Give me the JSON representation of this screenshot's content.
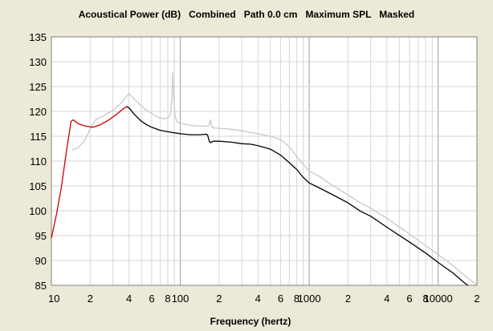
{
  "chart_data": {
    "type": "line",
    "title": "Acoustical Power (dB)   Combined   Path 0.0 cm   Maximum SPL   Masked",
    "xlabel": "Frequency (hertz)",
    "ylabel": "",
    "x_scale": "log",
    "xlim": [
      10,
      20000
    ],
    "ylim": [
      85,
      135
    ],
    "grid": true,
    "y_ticks": [
      85,
      90,
      95,
      100,
      105,
      110,
      115,
      120,
      125,
      130,
      135
    ],
    "x_tick_labels": [
      {
        "x": 10,
        "label": "10"
      },
      {
        "x": 20,
        "label": "2"
      },
      {
        "x": 40,
        "label": "4"
      },
      {
        "x": 60,
        "label": "6"
      },
      {
        "x": 80,
        "label": "8"
      },
      {
        "x": 100,
        "label": "100"
      },
      {
        "x": 200,
        "label": "2"
      },
      {
        "x": 400,
        "label": "4"
      },
      {
        "x": 600,
        "label": "6"
      },
      {
        "x": 800,
        "label": "8"
      },
      {
        "x": 1000,
        "label": "1000"
      },
      {
        "x": 2000,
        "label": "2"
      },
      {
        "x": 4000,
        "label": "4"
      },
      {
        "x": 6000,
        "label": "6"
      },
      {
        "x": 8000,
        "label": "8"
      },
      {
        "x": 10000,
        "label": "10000"
      },
      {
        "x": 20000,
        "label": "2"
      }
    ],
    "series": [
      {
        "color": "#c8c8c8",
        "points": [
          [
            14.5,
            112.3
          ],
          [
            16,
            112.6
          ],
          [
            18,
            114.0
          ],
          [
            20,
            116.5
          ],
          [
            22,
            118.3
          ],
          [
            25,
            119.0
          ],
          [
            30,
            120.2
          ],
          [
            35,
            121.8
          ],
          [
            40,
            123.6
          ],
          [
            45,
            122.2
          ],
          [
            50,
            121.0
          ],
          [
            55,
            120.2
          ],
          [
            60,
            119.6
          ],
          [
            65,
            119.0
          ],
          [
            70,
            118.7
          ],
          [
            75,
            118.5
          ],
          [
            80,
            118.7
          ],
          [
            84,
            119.5
          ],
          [
            86,
            122.5
          ],
          [
            87.5,
            127.8
          ],
          [
            89,
            123.0
          ],
          [
            91,
            119.0
          ],
          [
            95,
            117.8
          ],
          [
            100,
            117.6
          ],
          [
            120,
            117.2
          ],
          [
            150,
            117.0
          ],
          [
            165,
            117.1
          ],
          [
            168,
            117.4
          ],
          [
            172,
            118.3
          ],
          [
            175,
            117.0
          ],
          [
            180,
            116.7
          ],
          [
            200,
            116.6
          ],
          [
            250,
            116.4
          ],
          [
            300,
            116.1
          ],
          [
            400,
            115.5
          ],
          [
            500,
            115.0
          ],
          [
            600,
            114.3
          ],
          [
            700,
            112.9
          ],
          [
            800,
            110.9
          ],
          [
            900,
            109.3
          ],
          [
            1000,
            108.0
          ],
          [
            1200,
            106.9
          ],
          [
            1500,
            105.2
          ],
          [
            2000,
            103.2
          ],
          [
            2500,
            101.6
          ],
          [
            3000,
            100.5
          ],
          [
            4000,
            98.5
          ],
          [
            6000,
            95.3
          ],
          [
            8000,
            93.0
          ],
          [
            10000,
            91.2
          ],
          [
            13000,
            89.0
          ],
          [
            16000,
            87.0
          ],
          [
            20000,
            85.1
          ]
        ]
      },
      {
        "color": "#cc0000",
        "points": [
          [
            10,
            94.5
          ],
          [
            11,
            99.5
          ],
          [
            12,
            105.0
          ],
          [
            13,
            111.5
          ],
          [
            14.2,
            118.0
          ],
          [
            14.8,
            118.3
          ],
          [
            16,
            117.6
          ],
          [
            17.5,
            117.2
          ],
          [
            19,
            117.0
          ],
          [
            21,
            116.8
          ],
          [
            24,
            117.3
          ],
          [
            28,
            118.3
          ],
          [
            32,
            119.4
          ],
          [
            36,
            120.5
          ],
          [
            38.5,
            121.0
          ]
        ]
      },
      {
        "color": "#000000",
        "points": [
          [
            38.5,
            121.0
          ],
          [
            40,
            120.7
          ],
          [
            44,
            119.4
          ],
          [
            50,
            118.0
          ],
          [
            55,
            117.3
          ],
          [
            60,
            116.8
          ],
          [
            70,
            116.2
          ],
          [
            80,
            115.9
          ],
          [
            90,
            115.7
          ],
          [
            100,
            115.5
          ],
          [
            120,
            115.3
          ],
          [
            140,
            115.3
          ],
          [
            160,
            115.4
          ],
          [
            163,
            115.2
          ],
          [
            168,
            114.0
          ],
          [
            172,
            113.7
          ],
          [
            180,
            114.0
          ],
          [
            200,
            114.0
          ],
          [
            250,
            113.8
          ],
          [
            300,
            113.5
          ],
          [
            350,
            113.4
          ],
          [
            400,
            113.1
          ],
          [
            500,
            112.4
          ],
          [
            600,
            111.2
          ],
          [
            700,
            109.7
          ],
          [
            800,
            108.3
          ],
          [
            900,
            106.7
          ],
          [
            1000,
            105.6
          ],
          [
            1200,
            104.6
          ],
          [
            1500,
            103.3
          ],
          [
            2000,
            101.6
          ],
          [
            2500,
            99.9
          ],
          [
            3000,
            98.9
          ],
          [
            4000,
            96.7
          ],
          [
            6000,
            93.7
          ],
          [
            8000,
            91.5
          ],
          [
            10000,
            89.6
          ],
          [
            13000,
            87.5
          ],
          [
            16000,
            85.5
          ],
          [
            17000,
            85.0
          ]
        ]
      }
    ]
  }
}
